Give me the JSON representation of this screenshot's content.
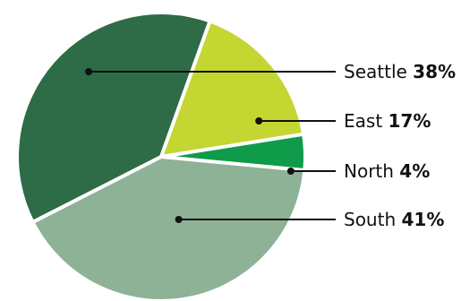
{
  "chart_data": {
    "type": "pie",
    "title": "",
    "slices": [
      {
        "label": "Seattle",
        "value": 38,
        "value_label": "38%",
        "color": "#2e6b47"
      },
      {
        "label": "East",
        "value": 17,
        "value_label": "17%",
        "color": "#c3d632"
      },
      {
        "label": "North",
        "value": 4,
        "value_label": "4%",
        "color": "#0f9b4a"
      },
      {
        "label": "South",
        "value": 41,
        "value_label": "41%",
        "color": "#8db296"
      }
    ],
    "legend": "none",
    "labels": "right-side with leader lines"
  }
}
